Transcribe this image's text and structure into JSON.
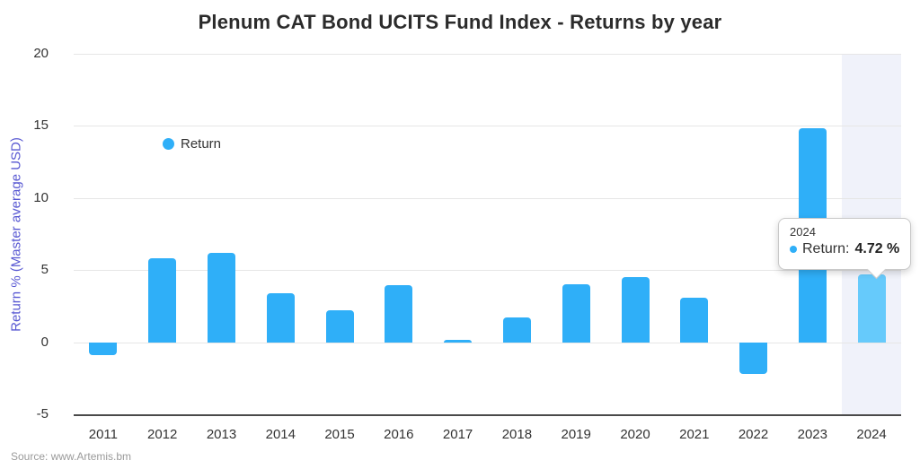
{
  "title": "Plenum CAT Bond UCITS Fund Index - Returns by year",
  "source": "Source: www.Artemis.bm",
  "legend": {
    "label": "Return"
  },
  "tooltip": {
    "header": "2024",
    "label": "Return:",
    "value": "4.72 %"
  },
  "colors": {
    "bar": "#2faff8",
    "bar_hover": "#66cafb",
    "hover_band": "#f0f2fa",
    "grid": "#e6e6e6",
    "axis_line": "#4a4a4a",
    "title_text": "#2b2b2b",
    "tick_text": "#333333",
    "y_axis_title_text": "#5757d2",
    "source_text": "#9a9a9a"
  },
  "chart_data": {
    "type": "bar",
    "title": "Plenum CAT Bond UCITS Fund Index - Returns by year",
    "categories": [
      "2011",
      "2012",
      "2013",
      "2014",
      "2015",
      "2016",
      "2017",
      "2018",
      "2019",
      "2020",
      "2021",
      "2022",
      "2023",
      "2024"
    ],
    "series": [
      {
        "name": "Return",
        "values": [
          -0.9,
          5.8,
          6.2,
          3.4,
          2.2,
          3.95,
          0.15,
          1.7,
          4.0,
          4.5,
          3.1,
          -2.2,
          14.85,
          4.72
        ]
      }
    ],
    "xlabel": "",
    "ylabel": "Return % (Master average USD)",
    "ylim": [
      -5,
      20
    ],
    "yticks": [
      -5,
      0,
      5,
      10,
      15,
      20
    ],
    "grid": true,
    "legend_position": "inside-top-left",
    "highlighted_category": "2024",
    "tooltip": {
      "category": "2024",
      "series": "Return",
      "value_text": "4.72 %"
    }
  }
}
